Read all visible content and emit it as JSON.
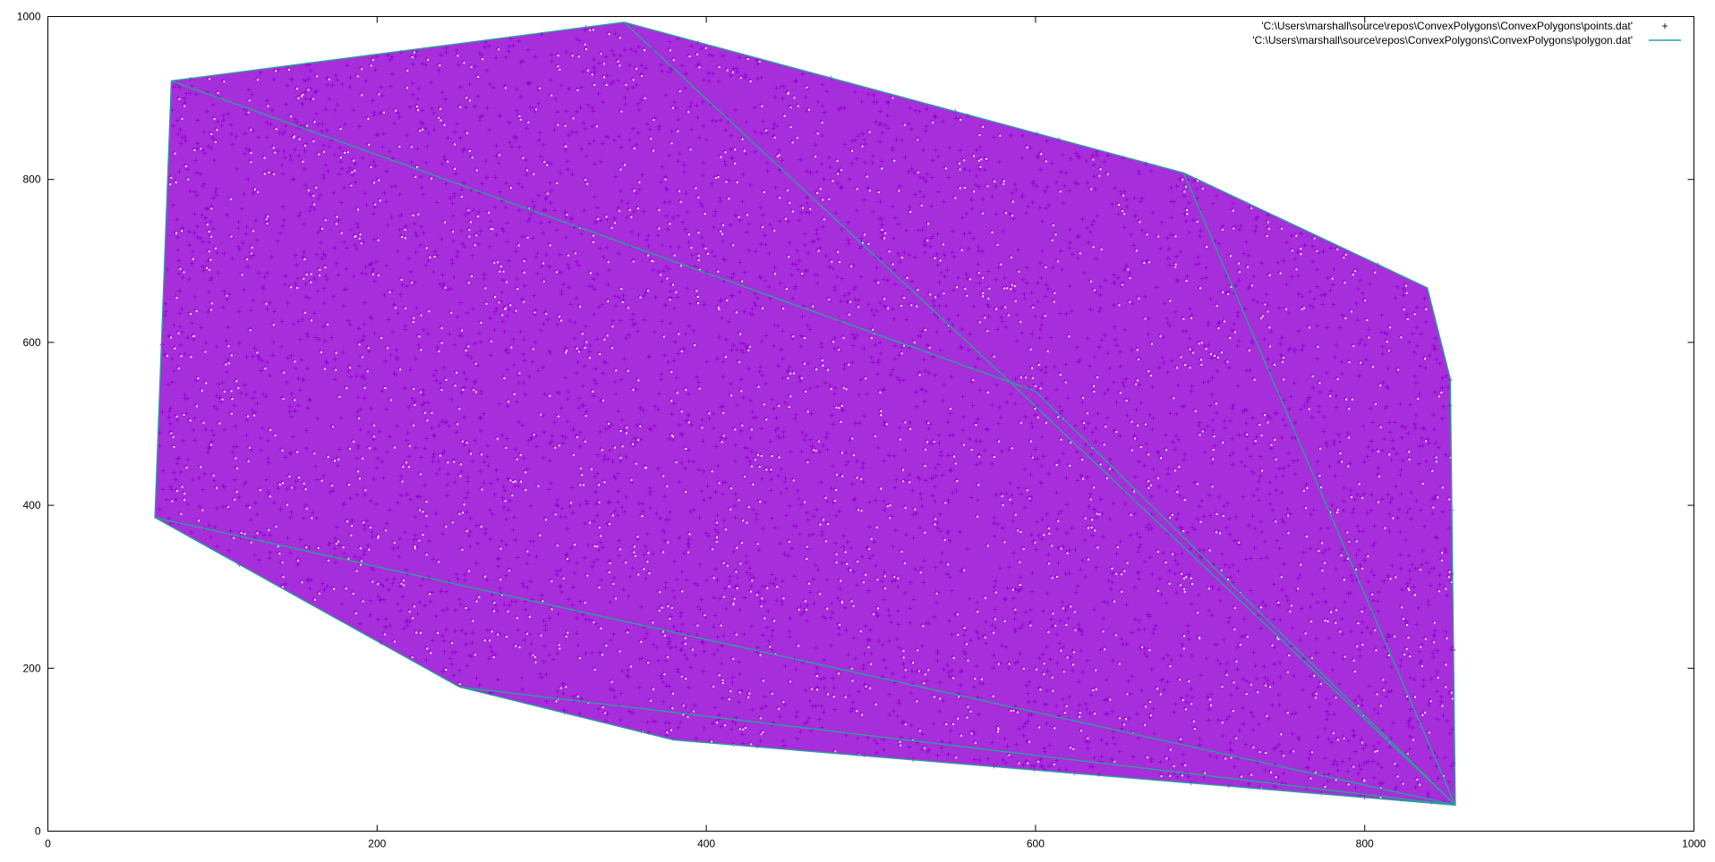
{
  "chart_data": {
    "type": "scatter",
    "title": "",
    "xlabel": "",
    "ylabel": "",
    "xlim": [
      0,
      1000
    ],
    "ylim": [
      0,
      1000
    ],
    "x_ticks": [
      0,
      200,
      400,
      600,
      800,
      1000
    ],
    "y_ticks": [
      0,
      200,
      400,
      600,
      800,
      1000
    ],
    "grid": false,
    "legend_position": "top-right",
    "series": [
      {
        "name": "'C:\\Users\\marshall\\source\\repos\\ConvexPolygons\\ConvexPolygons\\points.dat'",
        "type": "scatter",
        "marker": "+",
        "color": "#9400d3",
        "fill_region_polygon": [
          [
            350,
            993
          ],
          [
            690,
            808
          ],
          [
            838,
            667
          ],
          [
            852,
            555
          ],
          [
            855,
            32
          ],
          [
            380,
            112
          ],
          [
            250,
            177
          ],
          [
            65,
            385
          ],
          [
            75,
            921
          ]
        ]
      },
      {
        "name": "'C:\\Users\\marshall\\source\\repos\\ConvexPolygons\\ConvexPolygons\\polygon.dat'",
        "type": "line",
        "color": "#2aa198",
        "hull": [
          [
            75,
            921
          ],
          [
            350,
            993
          ],
          [
            690,
            808
          ],
          [
            838,
            667
          ],
          [
            852,
            555
          ],
          [
            855,
            32
          ],
          [
            380,
            112
          ],
          [
            250,
            177
          ],
          [
            65,
            385
          ],
          [
            75,
            921
          ]
        ],
        "internal_chains": [
          [
            [
              75,
              921
            ],
            [
              600,
              540
            ],
            [
              855,
              32
            ]
          ],
          [
            [
              350,
              993
            ],
            [
              580,
              560
            ],
            [
              855,
              32
            ]
          ],
          [
            [
              690,
              808
            ],
            [
              855,
              32
            ]
          ],
          [
            [
              65,
              385
            ],
            [
              855,
              32
            ]
          ],
          [
            [
              250,
              177
            ],
            [
              855,
              32
            ]
          ]
        ]
      }
    ]
  }
}
